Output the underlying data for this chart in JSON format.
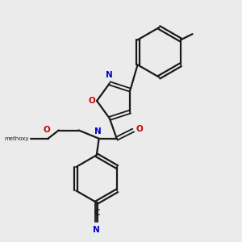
{
  "background_color": "#ebebeb",
  "atom_colors": {
    "C": "#000000",
    "N": "#0000cc",
    "O": "#cc0000",
    "H": "#000000"
  },
  "bond_color": "#1a1a1a",
  "figsize": [
    3.0,
    3.0
  ],
  "dpi": 100
}
